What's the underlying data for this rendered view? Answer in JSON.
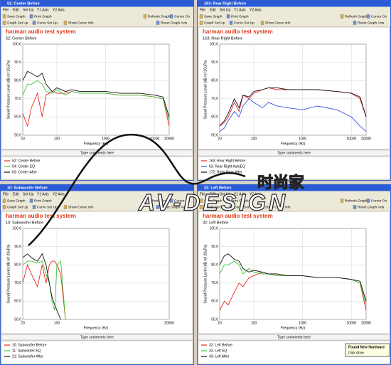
{
  "ui": {
    "menu": [
      "File",
      "Edit",
      "Set Up",
      "Y1 Axis",
      "Y2 Axis"
    ],
    "toolbar": [
      "Save Graph",
      "Print Graph",
      "Refresh Graph",
      "Cursor On",
      "Graph Set Up",
      "Curve Set Up",
      "Show Curve Info",
      "Reset Graph Axis"
    ],
    "comments": "Type comments here"
  },
  "chart_data": [
    {
      "type": "line",
      "window_title": "52: Center Before",
      "title": "harman audio test system",
      "subtitle": "52: Center Before",
      "x_label": "Frequency (Hz)",
      "y_label": "Sound Pressure Level (dB ref 20uPa)",
      "x_log": true,
      "grid": true,
      "xlim": [
        20,
        20000
      ],
      "xticks": [
        20,
        100,
        1000,
        10000,
        20000
      ],
      "ylim": [
        50,
        100
      ],
      "yticks": [
        {
          "value": 50,
          "label": "50.0"
        },
        {
          "value": 60,
          "label": "60.0"
        },
        {
          "value": 70,
          "label": "70.0"
        },
        {
          "value": 80,
          "label": "80.0"
        },
        {
          "value": 90,
          "label": "90.0"
        },
        {
          "value": 100,
          "label": "100.0"
        }
      ],
      "x": [
        20,
        25,
        30,
        40,
        50,
        60,
        80,
        100,
        150,
        200,
        300,
        500,
        1000,
        2000,
        5000,
        10000,
        15000,
        20000
      ],
      "series": [
        {
          "name": "52: Center Before",
          "color": "#e8281e",
          "values": [
            62,
            55,
            65,
            73,
            60,
            72,
            74,
            73,
            73,
            74,
            73,
            73,
            73,
            72,
            72,
            71,
            70,
            55
          ]
        },
        {
          "name": "54: Center EQ",
          "color": "#3cc83c",
          "values": [
            72,
            78,
            78,
            80,
            78,
            74,
            73,
            75,
            72,
            74,
            73,
            73,
            73,
            72,
            72,
            71,
            70,
            58
          ]
        },
        {
          "name": "63: Center After",
          "color": "#111111",
          "values": [
            80,
            85,
            84,
            82,
            84,
            78,
            74,
            76,
            74,
            75,
            74,
            74,
            74,
            73,
            73,
            72,
            71,
            60
          ]
        }
      ]
    },
    {
      "type": "line",
      "window_title": "163: Rear Right Before",
      "title": "harman audio test system",
      "subtitle": "163: Rear Right Before",
      "x_label": "Frequency (Hz)",
      "y_label": "Sound Pressure Level (dB ref 20uPa)",
      "x_log": true,
      "grid": true,
      "xlim": [
        20,
        20000
      ],
      "xticks": [
        20,
        100,
        1000,
        10000,
        20000
      ],
      "ylim": [
        50,
        100
      ],
      "yticks": [
        {
          "value": 50,
          "label": "50.0"
        },
        {
          "value": 60,
          "label": "60.0"
        },
        {
          "value": 70,
          "label": "70.0"
        },
        {
          "value": 80,
          "label": "80.0"
        },
        {
          "value": 90,
          "label": "90.0"
        },
        {
          "value": 100,
          "label": "100.0"
        }
      ],
      "x": [
        20,
        25,
        30,
        40,
        50,
        60,
        80,
        100,
        150,
        200,
        300,
        500,
        1000,
        2000,
        5000,
        10000,
        15000,
        20000
      ],
      "series": [
        {
          "name": "163: Rear Right Before",
          "color": "#e8281e",
          "values": [
            55,
            57,
            60,
            68,
            63,
            72,
            70,
            73,
            75,
            76,
            75,
            75,
            75,
            75,
            74,
            73,
            70,
            60
          ]
        },
        {
          "name": "63: Rear Right AutoEQ",
          "color": "#3c50e6",
          "values": [
            52,
            54,
            58,
            63,
            60,
            66,
            70,
            68,
            65,
            68,
            66,
            65,
            64,
            66,
            64,
            60,
            55,
            52
          ]
        },
        {
          "name": "172: Right Rear After",
          "color": "#111111",
          "values": [
            55,
            58,
            62,
            70,
            65,
            72,
            71,
            74,
            75,
            76,
            76,
            75,
            75,
            75,
            74,
            73,
            71,
            60
          ]
        }
      ]
    },
    {
      "type": "line",
      "window_title": "10: Subwoofer Before",
      "title": "harman audio test system",
      "subtitle": "10: Subwoofer Before",
      "x_label": "Frequency (Hz)",
      "y_label": "Sound Pressure Level (dB ref 20uPa)",
      "x_log": true,
      "grid": true,
      "xlim": [
        20,
        20000
      ],
      "xticks": [
        20,
        100,
        20000
      ],
      "ylim": [
        50,
        100
      ],
      "yticks": [
        {
          "value": 50,
          "label": "50.0"
        },
        {
          "value": 60,
          "label": "60.0"
        },
        {
          "value": 70,
          "label": "70.0"
        },
        {
          "value": 80,
          "label": "80.0"
        },
        {
          "value": 90,
          "label": "90.0"
        },
        {
          "value": 100,
          "label": "100.0"
        }
      ],
      "x": [
        20,
        25,
        30,
        40,
        50,
        60,
        70,
        80,
        90,
        100,
        120,
        150
      ],
      "series": [
        {
          "name": "10: Subwoofer Before",
          "color": "#e8281e",
          "values": [
            70,
            80,
            75,
            68,
            80,
            70,
            80,
            82,
            82,
            80,
            75,
            50
          ]
        },
        {
          "name": "11: Subwoofer EQ",
          "color": "#3cc83c",
          "values": [
            80,
            82,
            82,
            81,
            82,
            75,
            70,
            60,
            55,
            80,
            82,
            50
          ]
        },
        {
          "name": "21: Subwoofer After",
          "color": "#111111",
          "values": [
            84,
            86,
            84,
            82,
            86,
            80,
            70,
            62,
            58,
            55,
            50,
            null
          ]
        }
      ]
    },
    {
      "type": "line",
      "window_title": "32: Left Before",
      "title": "harman audio test system",
      "subtitle": "32: Left Before",
      "x_label": "Frequency (Hz)",
      "y_label": "Sound Pressure Level (dB ref 20uPa)",
      "x_log": true,
      "grid": true,
      "xlim": [
        20,
        20000
      ],
      "xticks": [
        20,
        100,
        1000,
        10000,
        20000
      ],
      "ylim": [
        50,
        100
      ],
      "yticks": [
        {
          "value": 50,
          "label": "50.0"
        },
        {
          "value": 60,
          "label": "60.0"
        },
        {
          "value": 70,
          "label": "70.0"
        },
        {
          "value": 80,
          "label": "80.0"
        },
        {
          "value": 90,
          "label": "90.0"
        },
        {
          "value": 100,
          "label": "100.0"
        }
      ],
      "x": [
        20,
        25,
        30,
        40,
        50,
        60,
        80,
        100,
        150,
        200,
        300,
        500,
        1000,
        2000,
        5000,
        10000,
        15000,
        20000
      ],
      "series": [
        {
          "name": "32: Left Before",
          "color": "#e8281e",
          "values": [
            55,
            60,
            58,
            65,
            70,
            68,
            73,
            74,
            76,
            75,
            74,
            74,
            74,
            73,
            73,
            72,
            70,
            55
          ]
        },
        {
          "name": "33: Left EQ",
          "color": "#3cc83c",
          "values": [
            75,
            80,
            80,
            82,
            80,
            75,
            78,
            76,
            75,
            75,
            74,
            74,
            74,
            73,
            73,
            72,
            70,
            58
          ]
        },
        {
          "name": "43: Left After",
          "color": "#111111",
          "values": [
            80,
            85,
            86,
            83,
            82,
            78,
            76,
            77,
            76,
            75,
            75,
            74,
            74,
            73,
            73,
            72,
            71,
            60
          ]
        }
      ]
    }
  ],
  "watermark": {
    "chinese": "时尚家",
    "brand": "AV-DESIGN"
  },
  "notification": {
    "title": "Found New Hardware",
    "text": "Disk drive"
  }
}
